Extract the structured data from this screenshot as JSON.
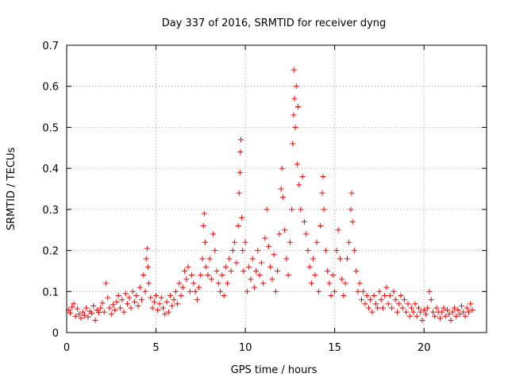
{
  "chart_data": {
    "type": "scatter",
    "title": "Day 337 of 2016, SRMTID for receiver dyng",
    "xlabel": "GPS time / hours",
    "ylabel": "SRMTID / TECUs",
    "xlim": [
      0,
      23.5
    ],
    "ylim": [
      0,
      0.7
    ],
    "xticks": [
      0,
      5,
      10,
      15,
      20
    ],
    "xtick_labels": [
      "0",
      "5",
      "10",
      "15",
      "20"
    ],
    "yticks": [
      0,
      0.1,
      0.2,
      0.3,
      0.4,
      0.5,
      0.6,
      0.7
    ],
    "ytick_labels": [
      "0",
      "0.1",
      "0.2",
      "0.3",
      "0.4",
      "0.5",
      "0.6",
      "0.7"
    ],
    "grid": true,
    "marker": "+",
    "color": "#ff0000",
    "series": [
      {
        "name": "SRMTID",
        "points": [
          [
            0.1,
            0.055
          ],
          [
            0.2,
            0.048
          ],
          [
            0.3,
            0.062
          ],
          [
            0.4,
            0.07
          ],
          [
            0.5,
            0.04
          ],
          [
            0.6,
            0.058
          ],
          [
            0.7,
            0.045
          ],
          [
            0.8,
            0.035
          ],
          [
            0.9,
            0.05
          ],
          [
            1.0,
            0.042
          ],
          [
            1.1,
            0.06
          ],
          [
            1.2,
            0.038
          ],
          [
            1.3,
            0.052
          ],
          [
            1.4,
            0.047
          ],
          [
            1.5,
            0.065
          ],
          [
            1.6,
            0.03
          ],
          [
            1.7,
            0.055
          ],
          [
            1.8,
            0.049
          ],
          [
            1.9,
            0.06
          ],
          [
            2.0,
            0.072
          ],
          [
            2.1,
            0.05
          ],
          [
            2.2,
            0.12
          ],
          [
            2.3,
            0.085
          ],
          [
            2.4,
            0.06
          ],
          [
            2.5,
            0.045
          ],
          [
            2.6,
            0.068
          ],
          [
            2.7,
            0.055
          ],
          [
            2.8,
            0.075
          ],
          [
            2.9,
            0.09
          ],
          [
            3.0,
            0.06
          ],
          [
            3.1,
            0.08
          ],
          [
            3.2,
            0.05
          ],
          [
            3.3,
            0.095
          ],
          [
            3.4,
            0.07
          ],
          [
            3.5,
            0.085
          ],
          [
            3.6,
            0.06
          ],
          [
            3.7,
            0.1
          ],
          [
            3.8,
            0.075
          ],
          [
            3.9,
            0.09
          ],
          [
            4.0,
            0.065
          ],
          [
            4.1,
            0.11
          ],
          [
            4.2,
            0.08
          ],
          [
            4.3,
            0.14
          ],
          [
            4.4,
            0.1
          ],
          [
            4.45,
            0.18
          ],
          [
            4.5,
            0.205
          ],
          [
            4.55,
            0.16
          ],
          [
            4.6,
            0.12
          ],
          [
            4.7,
            0.085
          ],
          [
            4.8,
            0.06
          ],
          [
            4.9,
            0.075
          ],
          [
            5.0,
            0.09
          ],
          [
            5.1,
            0.055
          ],
          [
            5.2,
            0.07
          ],
          [
            5.3,
            0.085
          ],
          [
            5.4,
            0.06
          ],
          [
            5.5,
            0.045
          ],
          [
            5.6,
            0.075
          ],
          [
            5.7,
            0.05
          ],
          [
            5.8,
            0.09
          ],
          [
            5.9,
            0.065
          ],
          [
            6.0,
            0.08
          ],
          [
            6.1,
            0.1
          ],
          [
            6.2,
            0.07
          ],
          [
            6.3,
            0.12
          ],
          [
            6.4,
            0.09
          ],
          [
            6.5,
            0.11
          ],
          [
            6.6,
            0.15
          ],
          [
            6.7,
            0.13
          ],
          [
            6.8,
            0.16
          ],
          [
            6.9,
            0.1
          ],
          [
            7.0,
            0.14
          ],
          [
            7.1,
            0.12
          ],
          [
            7.2,
            0.1
          ],
          [
            7.3,
            0.08
          ],
          [
            7.4,
            0.11
          ],
          [
            7.5,
            0.14
          ],
          [
            7.6,
            0.18
          ],
          [
            7.65,
            0.26
          ],
          [
            7.7,
            0.29
          ],
          [
            7.75,
            0.22
          ],
          [
            7.8,
            0.16
          ],
          [
            7.9,
            0.14
          ],
          [
            8.0,
            0.18
          ],
          [
            8.1,
            0.13
          ],
          [
            8.2,
            0.24
          ],
          [
            8.3,
            0.2
          ],
          [
            8.4,
            0.15
          ],
          [
            8.5,
            0.12
          ],
          [
            8.6,
            0.1
          ],
          [
            8.7,
            0.14
          ],
          [
            8.8,
            0.09
          ],
          [
            8.9,
            0.16
          ],
          [
            9.0,
            0.12
          ],
          [
            9.1,
            0.18
          ],
          [
            9.2,
            0.15
          ],
          [
            9.3,
            0.2
          ],
          [
            9.4,
            0.22
          ],
          [
            9.5,
            0.17
          ],
          [
            9.6,
            0.26
          ],
          [
            9.65,
            0.34
          ],
          [
            9.7,
            0.39
          ],
          [
            9.72,
            0.44
          ],
          [
            9.75,
            0.47
          ],
          [
            9.8,
            0.28
          ],
          [
            9.85,
            0.2
          ],
          [
            9.9,
            0.15
          ],
          [
            10.0,
            0.22
          ],
          [
            10.1,
            0.1
          ],
          [
            10.2,
            0.16
          ],
          [
            10.3,
            0.13
          ],
          [
            10.4,
            0.18
          ],
          [
            10.5,
            0.11
          ],
          [
            10.6,
            0.15
          ],
          [
            10.7,
            0.2
          ],
          [
            10.8,
            0.14
          ],
          [
            10.9,
            0.17
          ],
          [
            11.0,
            0.12
          ],
          [
            11.1,
            0.23
          ],
          [
            11.2,
            0.3
          ],
          [
            11.3,
            0.21
          ],
          [
            11.4,
            0.16
          ],
          [
            11.5,
            0.13
          ],
          [
            11.6,
            0.19
          ],
          [
            11.7,
            0.1
          ],
          [
            11.8,
            0.15
          ],
          [
            11.9,
            0.24
          ],
          [
            12.0,
            0.35
          ],
          [
            12.05,
            0.4
          ],
          [
            12.1,
            0.33
          ],
          [
            12.2,
            0.25
          ],
          [
            12.3,
            0.18
          ],
          [
            12.4,
            0.14
          ],
          [
            12.5,
            0.22
          ],
          [
            12.6,
            0.3
          ],
          [
            12.65,
            0.46
          ],
          [
            12.7,
            0.53
          ],
          [
            12.72,
            0.64
          ],
          [
            12.75,
            0.57
          ],
          [
            12.8,
            0.5
          ],
          [
            12.85,
            0.6
          ],
          [
            12.9,
            0.41
          ],
          [
            12.95,
            0.55
          ],
          [
            13.0,
            0.36
          ],
          [
            13.1,
            0.3
          ],
          [
            13.2,
            0.38
          ],
          [
            13.3,
            0.27
          ],
          [
            13.4,
            0.24
          ],
          [
            13.5,
            0.2
          ],
          [
            13.6,
            0.16
          ],
          [
            13.7,
            0.12
          ],
          [
            13.8,
            0.18
          ],
          [
            13.9,
            0.14
          ],
          [
            14.0,
            0.22
          ],
          [
            14.1,
            0.1
          ],
          [
            14.2,
            0.26
          ],
          [
            14.3,
            0.34
          ],
          [
            14.35,
            0.38
          ],
          [
            14.4,
            0.3
          ],
          [
            14.5,
            0.2
          ],
          [
            14.6,
            0.15
          ],
          [
            14.7,
            0.12
          ],
          [
            14.8,
            0.09
          ],
          [
            14.9,
            0.14
          ],
          [
            15.0,
            0.1
          ],
          [
            15.1,
            0.2
          ],
          [
            15.2,
            0.25
          ],
          [
            15.3,
            0.18
          ],
          [
            15.4,
            0.13
          ],
          [
            15.5,
            0.09
          ],
          [
            15.6,
            0.12
          ],
          [
            15.7,
            0.18
          ],
          [
            15.8,
            0.22
          ],
          [
            15.9,
            0.3
          ],
          [
            15.95,
            0.34
          ],
          [
            16.0,
            0.27
          ],
          [
            16.1,
            0.2
          ],
          [
            16.2,
            0.15
          ],
          [
            16.3,
            0.1
          ],
          [
            16.4,
            0.12
          ],
          [
            16.5,
            0.08
          ],
          [
            16.6,
            0.1
          ],
          [
            16.7,
            0.07
          ],
          [
            16.8,
            0.09
          ],
          [
            16.9,
            0.06
          ],
          [
            17.0,
            0.08
          ],
          [
            17.1,
            0.05
          ],
          [
            17.2,
            0.09
          ],
          [
            17.3,
            0.07
          ],
          [
            17.4,
            0.06
          ],
          [
            17.5,
            0.1
          ],
          [
            17.6,
            0.08
          ],
          [
            17.7,
            0.06
          ],
          [
            17.8,
            0.09
          ],
          [
            17.9,
            0.11
          ],
          [
            18.0,
            0.07
          ],
          [
            18.1,
            0.09
          ],
          [
            18.2,
            0.06
          ],
          [
            18.3,
            0.1
          ],
          [
            18.4,
            0.08
          ],
          [
            18.5,
            0.05
          ],
          [
            18.6,
            0.07
          ],
          [
            18.7,
            0.09
          ],
          [
            18.8,
            0.06
          ],
          [
            18.9,
            0.08
          ],
          [
            19.0,
            0.05
          ],
          [
            19.1,
            0.07
          ],
          [
            19.2,
            0.04
          ],
          [
            19.3,
            0.06
          ],
          [
            19.4,
            0.05
          ],
          [
            19.5,
            0.07
          ],
          [
            19.6,
            0.04
          ],
          [
            19.7,
            0.06
          ],
          [
            19.8,
            0.05
          ],
          [
            19.9,
            0.03
          ],
          [
            20.0,
            0.055
          ],
          [
            20.1,
            0.045
          ],
          [
            20.2,
            0.06
          ],
          [
            20.3,
            0.1
          ],
          [
            20.4,
            0.08
          ],
          [
            20.5,
            0.05
          ],
          [
            20.6,
            0.04
          ],
          [
            20.7,
            0.06
          ],
          [
            20.8,
            0.05
          ],
          [
            20.9,
            0.035
          ],
          [
            21.0,
            0.05
          ],
          [
            21.1,
            0.06
          ],
          [
            21.2,
            0.04
          ],
          [
            21.3,
            0.055
          ],
          [
            21.4,
            0.045
          ],
          [
            21.5,
            0.03
          ],
          [
            21.6,
            0.05
          ],
          [
            21.7,
            0.06
          ],
          [
            21.8,
            0.04
          ],
          [
            21.9,
            0.055
          ],
          [
            22.0,
            0.045
          ],
          [
            22.1,
            0.065
          ],
          [
            22.2,
            0.05
          ],
          [
            22.3,
            0.04
          ],
          [
            22.4,
            0.06
          ],
          [
            22.5,
            0.05
          ],
          [
            22.6,
            0.07
          ],
          [
            22.7,
            0.055
          ]
        ]
      }
    ]
  }
}
